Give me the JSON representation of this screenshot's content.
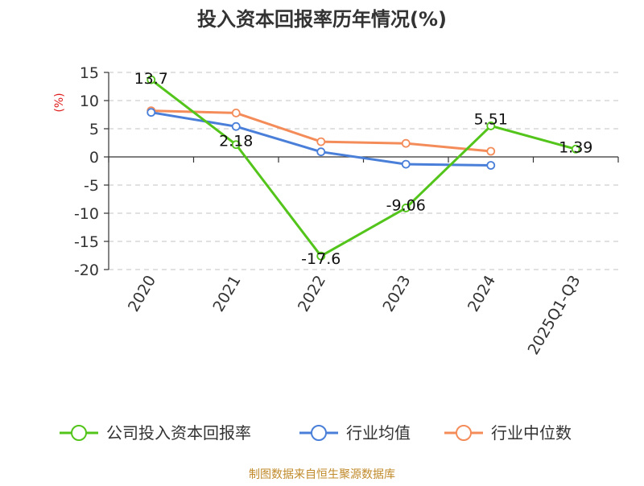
{
  "chart_data": {
    "type": "line",
    "title": "投入资本回报率历年情况(%)",
    "ylabel": "(%)",
    "xlabel": "",
    "categories": [
      "2020",
      "2021",
      "2022",
      "2023",
      "2024",
      "2025Q1-Q3"
    ],
    "ylim": [
      -20,
      15
    ],
    "yticks": [
      15,
      10,
      5,
      0,
      -5,
      -10,
      -15,
      -20
    ],
    "grid": true,
    "legend_position": "bottom",
    "series": [
      {
        "name": "公司投入资本回报率",
        "color": "#52c41a",
        "values": [
          13.7,
          2.18,
          -17.6,
          -9.06,
          5.51,
          1.39
        ],
        "labels": [
          "13.7",
          "2.18",
          "-17.6",
          "-9.06",
          "5.51",
          "1.39"
        ]
      },
      {
        "name": "行业均值",
        "color": "#4a7fd9",
        "values": [
          7.9,
          5.4,
          0.9,
          -1.3,
          -1.5,
          null
        ]
      },
      {
        "name": "行业中位数",
        "color": "#f48c5a",
        "values": [
          8.2,
          7.8,
          2.7,
          2.4,
          1.0,
          null
        ]
      }
    ]
  },
  "footer": {
    "source": "制图数据来自恒生聚源数据库"
  }
}
